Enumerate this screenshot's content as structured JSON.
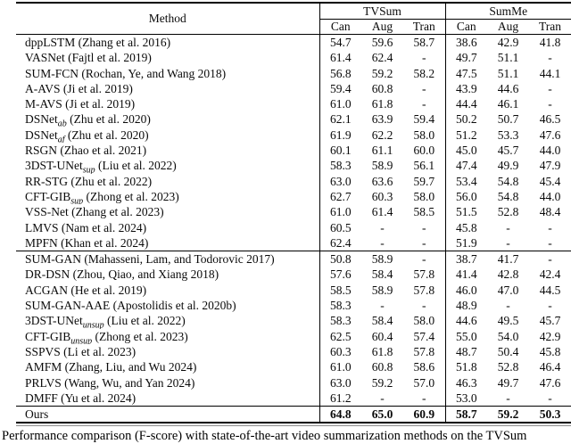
{
  "table": {
    "method_header": "Method",
    "groups": [
      {
        "label": "TVSum"
      },
      {
        "label": "SumMe"
      }
    ],
    "sub_headers": [
      "Can",
      "Aug",
      "Tran",
      "Can",
      "Aug",
      "Tran"
    ],
    "sections": [
      {
        "name": "supervised",
        "rows": [
          {
            "pre": "dppLSTM",
            "sub": "",
            "post": " (Zhang et al. 2016)",
            "bold": false,
            "vals": [
              "54.7",
              "59.6",
              "58.7",
              "38.6",
              "42.9",
              "41.8"
            ]
          },
          {
            "pre": "VASNet",
            "sub": "",
            "post": " (Fajtl et al. 2019)",
            "bold": false,
            "vals": [
              "61.4",
              "62.4",
              "-",
              "49.7",
              "51.1",
              "-"
            ]
          },
          {
            "pre": "SUM-FCN",
            "sub": "",
            "post": " (Rochan, Ye, and Wang 2018)",
            "bold": false,
            "vals": [
              "56.8",
              "59.2",
              "58.2",
              "47.5",
              "51.1",
              "44.1"
            ]
          },
          {
            "pre": "A-AVS",
            "sub": "",
            "post": " (Ji et al. 2019)",
            "bold": false,
            "vals": [
              "59.4",
              "60.8",
              "-",
              "43.9",
              "44.6",
              "-"
            ]
          },
          {
            "pre": "M-AVS",
            "sub": "",
            "post": " (Ji et al. 2019)",
            "bold": false,
            "vals": [
              "61.0",
              "61.8",
              "-",
              "44.4",
              "46.1",
              "-"
            ]
          },
          {
            "pre": "DSNet",
            "sub": "ab",
            "post": " (Zhu et al. 2020)",
            "bold": false,
            "vals": [
              "62.1",
              "63.9",
              "59.4",
              "50.2",
              "50.7",
              "46.5"
            ]
          },
          {
            "pre": "DSNet",
            "sub": "af",
            "post": " (Zhu et al. 2020)",
            "bold": false,
            "vals": [
              "61.9",
              "62.2",
              "58.0",
              "51.2",
              "53.3",
              "47.6"
            ]
          },
          {
            "pre": "RSGN",
            "sub": "",
            "post": " (Zhao et al. 2021)",
            "bold": false,
            "vals": [
              "60.1",
              "61.1",
              "60.0",
              "45.0",
              "45.7",
              "44.0"
            ]
          },
          {
            "pre": "3DST-UNet",
            "sub": "sup",
            "post": " (Liu et al. 2022)",
            "bold": false,
            "vals": [
              "58.3",
              "58.9",
              "56.1",
              "47.4",
              "49.9",
              "47.9"
            ]
          },
          {
            "pre": "RR-STG",
            "sub": "",
            "post": " (Zhu et al. 2022)",
            "bold": false,
            "vals": [
              "63.0",
              "63.6",
              "59.7",
              "53.4",
              "54.8",
              "45.4"
            ]
          },
          {
            "pre": "CFT-GIB",
            "sub": "sup",
            "post": " (Zhong et al. 2023)",
            "bold": false,
            "vals": [
              "62.7",
              "60.3",
              "58.0",
              "56.0",
              "54.8",
              "44.0"
            ]
          },
          {
            "pre": "VSS-Net",
            "sub": "",
            "post": " (Zhang et al. 2023)",
            "bold": false,
            "vals": [
              "61.0",
              "61.4",
              "58.5",
              "51.5",
              "52.8",
              "48.4"
            ]
          },
          {
            "pre": "LMVS",
            "sub": "",
            "post": " (Nam et al. 2024)",
            "bold": false,
            "vals": [
              "60.5",
              "-",
              "-",
              "45.8",
              "-",
              "-"
            ]
          },
          {
            "pre": "MPFN",
            "sub": "",
            "post": " (Khan et al. 2024)",
            "bold": false,
            "vals": [
              "62.4",
              "-",
              "-",
              "51.9",
              "-",
              "-"
            ]
          }
        ]
      },
      {
        "name": "unsupervised",
        "rows": [
          {
            "pre": "SUM-GAN",
            "sub": "",
            "post": " (Mahasseni, Lam, and Todorovic 2017)",
            "bold": false,
            "vals": [
              "50.8",
              "58.9",
              "-",
              "38.7",
              "41.7",
              "-"
            ]
          },
          {
            "pre": "DR-DSN",
            "sub": "",
            "post": " (Zhou, Qiao, and Xiang 2018)",
            "bold": false,
            "vals": [
              "57.6",
              "58.4",
              "57.8",
              "41.4",
              "42.8",
              "42.4"
            ]
          },
          {
            "pre": "ACGAN",
            "sub": "",
            "post": " (He et al. 2019)",
            "bold": false,
            "vals": [
              "58.5",
              "58.9",
              "57.8",
              "46.0",
              "47.0",
              "44.5"
            ]
          },
          {
            "pre": "SUM-GAN-AAE",
            "sub": "",
            "post": " (Apostolidis et al. 2020b)",
            "bold": false,
            "vals": [
              "58.3",
              "-",
              "-",
              "48.9",
              "-",
              "-"
            ]
          },
          {
            "pre": "3DST-UNet",
            "sub": "unsup",
            "post": " (Liu et al. 2022)",
            "bold": false,
            "vals": [
              "58.3",
              "58.4",
              "58.0",
              "44.6",
              "49.5",
              "45.7"
            ]
          },
          {
            "pre": "CFT-GIB",
            "sub": "unsup",
            "post": " (Zhong et al. 2023)",
            "bold": false,
            "vals": [
              "62.5",
              "60.4",
              "57.4",
              "55.0",
              "54.0",
              "42.9"
            ]
          },
          {
            "pre": "SSPVS",
            "sub": "",
            "post": " (Li et al. 2023)",
            "bold": false,
            "vals": [
              "60.3",
              "61.8",
              "57.8",
              "48.7",
              "50.4",
              "45.8"
            ]
          },
          {
            "pre": "AMFM",
            "sub": "",
            "post": " (Zhang, Liu, and Wu 2024)",
            "bold": false,
            "vals": [
              "61.0",
              "60.8",
              "58.6",
              "51.8",
              "52.8",
              "46.4"
            ]
          },
          {
            "pre": "PRLVS",
            "sub": "",
            "post": " (Wang, Wu, and Yan 2024)",
            "bold": false,
            "vals": [
              "63.0",
              "59.2",
              "57.0",
              "46.3",
              "49.7",
              "47.6"
            ]
          },
          {
            "pre": "DMFF",
            "sub": "",
            "post": " (Yu et al. 2024)",
            "bold": false,
            "vals": [
              "61.2",
              "-",
              "-",
              "53.0",
              "-",
              "-"
            ]
          }
        ]
      },
      {
        "name": "ours",
        "rows": [
          {
            "pre": "Ours",
            "sub": "",
            "post": "",
            "bold": true,
            "vals": [
              "64.8",
              "65.0",
              "60.9",
              "58.7",
              "59.2",
              "50.3"
            ]
          }
        ]
      }
    ]
  },
  "caption": {
    "text": "Performance comparison (F-score) with state-of-the-art video summarization methods on the TVSum"
  }
}
